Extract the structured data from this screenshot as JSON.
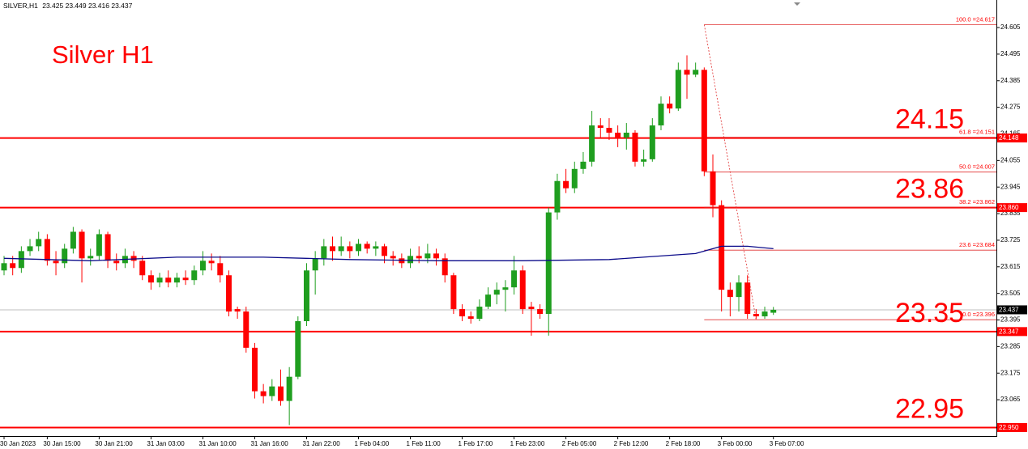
{
  "chart_data": {
    "type": "candlestick",
    "title": "Silver H1",
    "symbol": "SILVER,H1",
    "up_color": "#1f9e1f",
    "down_color": "#ff0000",
    "series": [
      {
        "open": [
          23.6,
          23.63,
          23.61,
          23.68,
          23.7,
          23.73,
          23.64,
          23.63,
          23.69,
          23.76,
          23.65,
          23.66,
          23.75,
          23.64,
          23.63,
          23.66,
          23.64,
          23.58,
          23.55,
          23.57,
          23.55,
          23.57,
          23.56,
          23.6,
          23.64,
          23.63,
          23.58,
          23.44,
          23.43,
          23.28,
          23.1,
          23.08,
          23.12,
          23.06,
          23.16,
          23.39,
          23.6,
          23.65,
          23.7,
          23.68,
          23.7,
          23.68,
          23.71,
          23.69,
          23.7,
          23.66,
          23.65,
          23.63,
          23.66,
          23.65,
          23.67,
          23.65,
          23.58,
          23.44,
          23.41,
          23.4,
          23.45,
          23.5,
          23.52,
          23.53,
          23.6,
          23.45,
          23.44,
          23.42,
          23.84,
          23.97,
          23.94,
          24.02,
          24.05,
          24.2,
          24.19,
          24.17,
          24.15,
          24.17,
          24.05,
          24.06,
          24.2,
          24.29,
          24.27,
          24.43,
          24.41,
          24.43,
          24.01,
          23.87,
          23.52,
          23.49,
          23.55,
          23.42,
          23.41,
          23.425
        ],
        "high": [
          23.66,
          23.66,
          23.7,
          23.73,
          23.76,
          23.75,
          23.68,
          23.71,
          23.78,
          23.77,
          23.69,
          23.77,
          23.76,
          23.67,
          23.69,
          23.68,
          23.66,
          23.6,
          23.59,
          23.6,
          23.59,
          23.6,
          23.62,
          23.68,
          23.67,
          23.66,
          23.6,
          23.45,
          23.45,
          23.3,
          23.13,
          23.15,
          23.19,
          23.2,
          23.41,
          23.63,
          23.68,
          23.73,
          23.74,
          23.74,
          23.72,
          23.73,
          23.72,
          23.72,
          23.71,
          23.68,
          23.67,
          23.69,
          23.7,
          23.71,
          23.69,
          23.67,
          23.59,
          23.46,
          23.43,
          23.48,
          23.53,
          23.55,
          23.56,
          23.66,
          23.62,
          23.47,
          23.46,
          23.86,
          24.0,
          24.02,
          24.05,
          24.09,
          24.26,
          24.23,
          24.23,
          24.2,
          24.21,
          24.18,
          24.1,
          24.23,
          24.32,
          24.32,
          24.46,
          24.49,
          24.46,
          24.44,
          24.08,
          23.89,
          23.55,
          23.58,
          23.58,
          23.44,
          23.45,
          23.449
        ],
        "low": [
          23.58,
          23.58,
          23.59,
          23.66,
          23.68,
          23.62,
          23.58,
          23.61,
          23.67,
          23.55,
          23.62,
          23.64,
          23.61,
          23.6,
          23.61,
          23.61,
          23.56,
          23.52,
          23.53,
          23.53,
          23.53,
          23.54,
          23.54,
          23.58,
          23.6,
          23.55,
          23.41,
          23.4,
          23.26,
          23.07,
          23.05,
          23.06,
          23.04,
          22.96,
          23.15,
          23.37,
          23.5,
          23.62,
          23.64,
          23.66,
          23.65,
          23.66,
          23.67,
          23.66,
          23.63,
          23.62,
          23.61,
          23.61,
          23.63,
          23.63,
          23.62,
          23.55,
          23.42,
          23.39,
          23.38,
          23.39,
          23.44,
          23.46,
          23.43,
          23.5,
          23.42,
          23.33,
          23.4,
          23.33,
          23.81,
          23.92,
          23.92,
          24.0,
          24.03,
          24.15,
          24.14,
          24.11,
          24.1,
          24.03,
          24.03,
          24.05,
          24.18,
          24.25,
          24.26,
          24.31,
          24.4,
          23.99,
          23.82,
          23.43,
          23.41,
          23.43,
          23.4,
          23.4,
          23.4,
          23.416
        ],
        "close": [
          23.63,
          23.61,
          23.68,
          23.7,
          23.73,
          23.64,
          23.63,
          23.69,
          23.76,
          23.65,
          23.66,
          23.75,
          23.64,
          23.63,
          23.66,
          23.64,
          23.58,
          23.55,
          23.57,
          23.55,
          23.57,
          23.56,
          23.6,
          23.64,
          23.63,
          23.58,
          23.43,
          23.43,
          23.28,
          23.1,
          23.08,
          23.12,
          23.06,
          23.16,
          23.39,
          23.6,
          23.65,
          23.7,
          23.68,
          23.7,
          23.68,
          23.71,
          23.69,
          23.7,
          23.66,
          23.65,
          23.63,
          23.66,
          23.65,
          23.67,
          23.65,
          23.58,
          23.44,
          23.41,
          23.4,
          23.45,
          23.5,
          23.52,
          23.53,
          23.6,
          23.44,
          23.44,
          23.42,
          23.84,
          23.97,
          23.94,
          24.02,
          24.05,
          24.2,
          24.19,
          24.17,
          24.15,
          24.17,
          24.05,
          24.06,
          24.2,
          24.29,
          24.27,
          24.43,
          24.41,
          24.43,
          24.01,
          23.87,
          23.52,
          23.49,
          23.55,
          23.42,
          23.41,
          23.43,
          23.437
        ]
      }
    ],
    "ma": {
      "color": "#0b0b8a",
      "x": [
        0,
        10,
        20,
        30,
        40,
        50,
        60,
        70,
        80,
        83,
        86,
        89
      ],
      "values": [
        23.65,
        23.64,
        23.655,
        23.655,
        23.645,
        23.64,
        23.64,
        23.645,
        23.67,
        23.7,
        23.7,
        23.69
      ]
    },
    "levels": [
      {
        "value": 24.148,
        "label": "24.15"
      },
      {
        "value": 23.86,
        "label": "23.86",
        "price_label": "23.860"
      },
      {
        "value": 23.347,
        "label": "23.35"
      },
      {
        "value": 22.95,
        "label": "22.95",
        "price_label": "22.950"
      }
    ],
    "fib": [
      {
        "value": 24.617,
        "label": "100.0 =24.617"
      },
      {
        "value": 24.151,
        "label": "61.8 =24.151"
      },
      {
        "value": 24.007,
        "label": "50.0 =24.007"
      },
      {
        "value": 23.862,
        "label": "38.2 =23.862"
      },
      {
        "value": 23.684,
        "label": "23.6 =23.684"
      },
      {
        "value": 23.396,
        "label": "0.0 =23.396"
      }
    ],
    "level_color": "#ff0000",
    "xlim": [
      -0.47,
      114.8
    ],
    "xticks": [
      {
        "value": 0,
        "label": "30 Jan 2023"
      },
      {
        "value": 5,
        "label": "30 Jan 15:00"
      },
      {
        "value": 11,
        "label": "30 Jan 21:00"
      },
      {
        "value": 17,
        "label": "31 Jan 03:00"
      },
      {
        "value": 23,
        "label": "31 Jan 10:00"
      },
      {
        "value": 29,
        "label": "31 Jan 16:00"
      },
      {
        "value": 35,
        "label": "31 Jan 22:00"
      },
      {
        "value": 41,
        "label": "1 Feb 04:00"
      },
      {
        "value": 47,
        "label": "1 Feb 11:00"
      },
      {
        "value": 53,
        "label": "1 Feb 17:00"
      },
      {
        "value": 59,
        "label": "1 Feb 23:00"
      },
      {
        "value": 65,
        "label": "2 Feb 05:00"
      },
      {
        "value": 71,
        "label": "2 Feb 12:00"
      },
      {
        "value": 77,
        "label": "2 Feb 18:00"
      },
      {
        "value": 83,
        "label": "3 Feb 00:00"
      },
      {
        "value": 89,
        "label": "3 Feb 07:00"
      }
    ],
    "ylim": [
      22.918,
      24.719
    ],
    "yticks": [
      24.605,
      24.495,
      24.385,
      24.275,
      24.165,
      24.055,
      23.945,
      23.835,
      23.725,
      23.615,
      23.505,
      23.395,
      23.285,
      23.175,
      23.065
    ]
  }
}
